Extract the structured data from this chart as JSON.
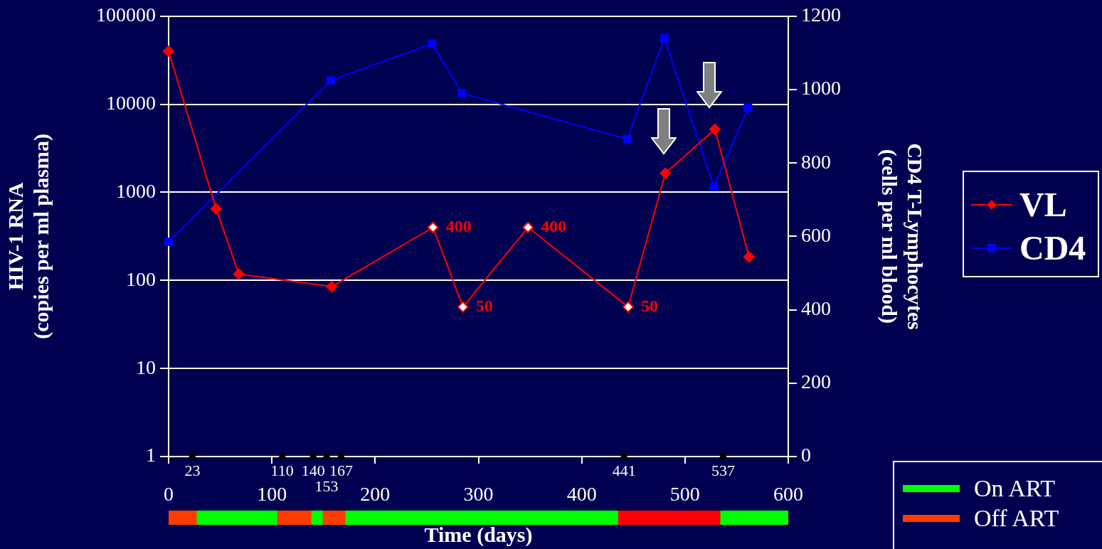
{
  "chart_data": [
    {
      "type": "line",
      "xlabel": "Time (days)",
      "ylabel": "HIV-1 RNA\n(copies per ml plasma)",
      "y2label": "CD4 T-Lymphocytes\n(cells per ml blood)",
      "xlim": [
        0,
        600
      ],
      "xticks": [
        0,
        100,
        200,
        300,
        400,
        500,
        600
      ],
      "ylim": [
        1,
        100000
      ],
      "yticks": [
        1,
        10,
        100,
        1000,
        10000,
        100000
      ],
      "log": "y",
      "y2lim": [
        0,
        1200
      ],
      "y2ticks": [
        0,
        200,
        400,
        600,
        800,
        1000,
        1200
      ],
      "grid": "y",
      "legend": "right",
      "line_style": "solid",
      "series": [
        {
          "name": "VL",
          "color": "#ff0000",
          "marker": "diamond",
          "x": [
            0,
            46,
            68,
            158,
            256,
            285,
            348,
            445,
            481,
            529,
            562
          ],
          "values": [
            40000,
            650,
            118,
            85,
            400,
            50,
            400,
            50,
            1650,
            5200,
            185
          ],
          "value_labels": [
            null,
            null,
            null,
            null,
            "400",
            "50",
            "400",
            "50",
            null,
            null,
            null
          ]
        },
        {
          "name": "CD4",
          "color": "#0000ff",
          "marker": "square",
          "axis": "y2",
          "x": [
            0,
            157,
            255,
            284,
            444,
            480,
            528,
            561
          ],
          "values": [
            585,
            1025,
            1125,
            990,
            865,
            1140,
            735,
            950
          ]
        },
        {
          "type": "scatter",
          "color": "#000000",
          "marker": "triangle",
          "x": [
            23,
            110,
            140,
            153,
            167,
            441,
            537
          ],
          "values": [
            1,
            1,
            1,
            1,
            1,
            1,
            1
          ]
        }
      ],
      "annotations": [
        {
          "text": "23",
          "x": 23,
          "y": 1
        },
        {
          "text": "110",
          "x": 110,
          "y": 1
        },
        {
          "text": "140",
          "x": 140,
          "y": 1
        },
        {
          "text": "153",
          "x": 153,
          "y": 1
        },
        {
          "text": "167",
          "x": 167,
          "y": 1
        },
        {
          "text": "441",
          "x": 441,
          "y": 1
        },
        {
          "text": "537",
          "x": 537,
          "y": 1
        }
      ]
    },
    {
      "type": "bar",
      "orientation": "horizontal",
      "stacked": true,
      "categories": [
        null
      ],
      "xlim": [
        0,
        600
      ],
      "legend": "right",
      "series": [
        {
          "color": "#ff3c00",
          "values": [
            27
          ]
        },
        {
          "name": "On ART",
          "color": "#00ff00",
          "values": [
            78
          ]
        },
        {
          "name": "Off ART",
          "color": "#ff3c00",
          "values": [
            33
          ]
        },
        {
          "color": "#00ff00",
          "values": [
            11
          ]
        },
        {
          "color": "#ff3c00",
          "values": [
            22
          ]
        },
        {
          "color": "#00ff00",
          "values": [
            264
          ]
        },
        {
          "color": "#ff0000",
          "values": [
            99
          ]
        },
        {
          "color": "#00ff00",
          "values": [
            66
          ]
        }
      ]
    }
  ]
}
